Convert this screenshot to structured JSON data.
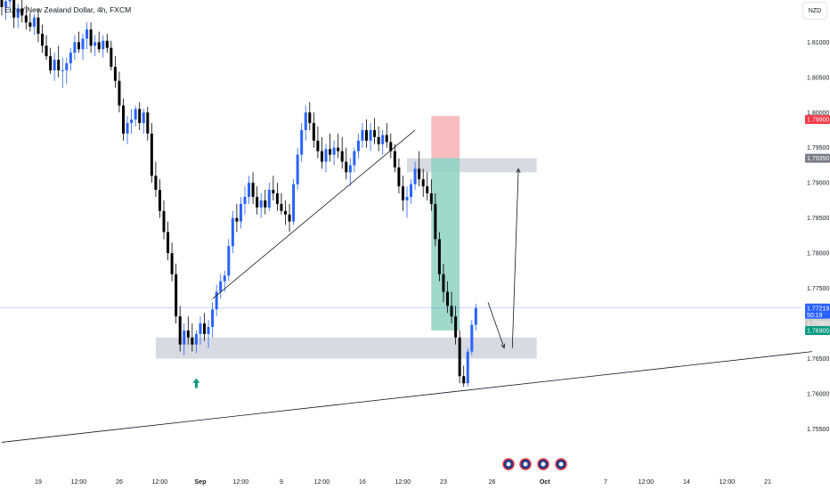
{
  "header": {
    "title": "Euro / New Zealand Dollar, 4h, FXCM",
    "currency": "NZD"
  },
  "chart_data": {
    "type": "candlestick",
    "title": "Euro / New Zealand Dollar, 4h, FXCM",
    "ylim": [
      1.751,
      1.816
    ],
    "y_ticks": [
      "1.81000",
      "1.80500",
      "1.80000",
      "1.79500",
      "1.79000",
      "1.78500",
      "1.78000",
      "1.77500",
      "1.77000",
      "1.76500",
      "1.76000",
      "1.75500"
    ],
    "y_tick_values": [
      1.81,
      1.805,
      1.8,
      1.795,
      1.79,
      1.785,
      1.78,
      1.775,
      1.77,
      1.765,
      1.76,
      1.755
    ],
    "x_ticks": [
      "19",
      "12:00",
      "26",
      "12:00",
      "Sep",
      "12:00",
      "9",
      "12:00",
      "16",
      "12:00",
      "23",
      "26",
      "Oct",
      "7",
      "12:00",
      "14",
      "12:00",
      "21"
    ],
    "x_tick_bold": [
      false,
      false,
      false,
      false,
      true,
      false,
      false,
      false,
      false,
      false,
      false,
      false,
      true,
      false,
      false,
      false,
      false,
      false
    ],
    "x_tick_index": [
      9,
      19,
      29,
      39,
      49,
      59,
      69,
      79,
      89,
      99,
      109,
      121,
      134,
      149,
      159,
      169,
      179,
      189
    ],
    "price_tags": [
      {
        "label": "1.79900",
        "value": 1.799,
        "color": "#f23645"
      },
      {
        "label": "1.79350",
        "value": 1.7935,
        "color": "#787b86"
      },
      {
        "label": "1.77219",
        "value": 1.77219,
        "color": "#2962ff",
        "sub": "50:19"
      },
      {
        "label": "1.77000",
        "value": 1.77,
        "color": "#cccccc"
      },
      {
        "label": "1.76900",
        "value": 1.769,
        "color": "#089981"
      }
    ],
    "current_price": 1.77219,
    "zones": [
      {
        "name": "support-zone",
        "x": [
          38,
          132
        ],
        "y": [
          1.765,
          1.768
        ],
        "color": "#d1d4dc"
      },
      {
        "name": "resistance-zone",
        "x": [
          100,
          132
        ],
        "y": [
          1.7915,
          1.7935
        ],
        "color": "#d1d4dc"
      },
      {
        "name": "stop-loss",
        "x": [
          106,
          113
        ],
        "y": [
          1.7935,
          1.7995
        ],
        "color": "#f7b2b6"
      },
      {
        "name": "take-profit",
        "x": [
          106,
          113
        ],
        "y": [
          1.769,
          1.7935
        ],
        "color": "#8fd1c1"
      }
    ],
    "trendlines": [
      {
        "p1": [
          52,
          1.7735
        ],
        "p2": [
          102,
          1.7975
        ]
      },
      {
        "p1": [
          0,
          1.7531
        ],
        "p2": [
          200,
          1.766
        ]
      }
    ],
    "arrows": [
      {
        "from": [
          120,
          1.773
        ],
        "to": [
          124,
          1.7665
        ]
      },
      {
        "from": [
          126,
          1.7665
        ],
        "to": [
          127.5,
          1.792
        ]
      }
    ],
    "candles": [
      [
        1.816,
        1.818,
        1.8138,
        1.815
      ],
      [
        1.815,
        1.8168,
        1.8132,
        1.8158
      ],
      [
        1.8158,
        1.818,
        1.8145,
        1.8165
      ],
      [
        1.8165,
        1.8175,
        1.812,
        1.8135
      ],
      [
        1.8135,
        1.8155,
        1.812,
        1.8148
      ],
      [
        1.8148,
        1.816,
        1.8128,
        1.8138
      ],
      [
        1.8138,
        1.8152,
        1.8118,
        1.8128
      ],
      [
        1.8128,
        1.8142,
        1.8115,
        1.8122
      ],
      [
        1.8122,
        1.814,
        1.811,
        1.8135
      ],
      [
        1.8135,
        1.8148,
        1.81,
        1.8112
      ],
      [
        1.8112,
        1.8125,
        1.8085,
        1.8095
      ],
      [
        1.8095,
        1.811,
        1.8075,
        1.808
      ],
      [
        1.808,
        1.8092,
        1.8055,
        1.806
      ],
      [
        1.806,
        1.8085,
        1.8045,
        1.8075
      ],
      [
        1.8075,
        1.8095,
        1.805,
        1.806
      ],
      [
        1.806,
        1.8078,
        1.8035,
        1.806
      ],
      [
        1.806,
        1.8078,
        1.804,
        1.807
      ],
      [
        1.807,
        1.8092,
        1.806,
        1.8085
      ],
      [
        1.8085,
        1.811,
        1.8075,
        1.81
      ],
      [
        1.81,
        1.8115,
        1.8085,
        1.809
      ],
      [
        1.809,
        1.8112,
        1.8075,
        1.8105
      ],
      [
        1.8105,
        1.8128,
        1.809,
        1.8118
      ],
      [
        1.8118,
        1.8128,
        1.8085,
        1.8095
      ],
      [
        1.8095,
        1.811,
        1.808,
        1.81
      ],
      [
        1.81,
        1.8115,
        1.8085,
        1.809
      ],
      [
        1.809,
        1.811,
        1.8078,
        1.8102
      ],
      [
        1.8102,
        1.8112,
        1.8085,
        1.8092
      ],
      [
        1.8092,
        1.8102,
        1.806,
        1.8065
      ],
      [
        1.8065,
        1.808,
        1.8035,
        1.8045
      ],
      [
        1.8045,
        1.8058,
        1.8,
        1.801
      ],
      [
        1.801,
        1.802,
        1.796,
        1.797
      ],
      [
        1.797,
        1.7995,
        1.7955,
        1.7985
      ],
      [
        1.7985,
        1.8005,
        1.797,
        1.799
      ],
      [
        1.799,
        1.801,
        1.798,
        1.8005
      ],
      [
        1.8005,
        1.8015,
        1.7975,
        1.7985
      ],
      [
        1.7985,
        1.8005,
        1.797,
        1.8
      ],
      [
        1.8,
        1.8008,
        1.796,
        1.797
      ],
      [
        1.797,
        1.7985,
        1.79,
        1.791
      ],
      [
        1.791,
        1.793,
        1.788,
        1.789
      ],
      [
        1.789,
        1.7905,
        1.785,
        1.786
      ],
      [
        1.786,
        1.7875,
        1.782,
        1.783
      ],
      [
        1.783,
        1.7845,
        1.779,
        1.78
      ],
      [
        1.78,
        1.7815,
        1.776,
        1.777
      ],
      [
        1.777,
        1.7785,
        1.77,
        1.771
      ],
      [
        1.771,
        1.7725,
        1.766,
        1.767
      ],
      [
        1.767,
        1.77,
        1.7655,
        1.769
      ],
      [
        1.769,
        1.771,
        1.767,
        1.768
      ],
      [
        1.768,
        1.77,
        1.766,
        1.767
      ],
      [
        1.767,
        1.769,
        1.7658,
        1.7685
      ],
      [
        1.7685,
        1.771,
        1.767,
        1.77
      ],
      [
        1.77,
        1.7715,
        1.7675,
        1.7685
      ],
      [
        1.7685,
        1.7705,
        1.7665,
        1.7695
      ],
      [
        1.7695,
        1.773,
        1.768,
        1.772
      ],
      [
        1.772,
        1.7755,
        1.771,
        1.7745
      ],
      [
        1.7745,
        1.777,
        1.7735,
        1.776
      ],
      [
        1.776,
        1.7775,
        1.7745,
        1.7768
      ],
      [
        1.7768,
        1.782,
        1.776,
        1.781
      ],
      [
        1.781,
        1.786,
        1.78,
        1.785
      ],
      [
        1.785,
        1.787,
        1.783,
        1.7845
      ],
      [
        1.7845,
        1.788,
        1.7835,
        1.787
      ],
      [
        1.787,
        1.7895,
        1.7855,
        1.788
      ],
      [
        1.788,
        1.791,
        1.787,
        1.79
      ],
      [
        1.79,
        1.7915,
        1.787,
        1.788
      ],
      [
        1.788,
        1.7895,
        1.7855,
        1.7865
      ],
      [
        1.7865,
        1.7885,
        1.785,
        1.7875
      ],
      [
        1.7875,
        1.789,
        1.7855,
        1.7865
      ],
      [
        1.7865,
        1.79,
        1.786,
        1.789
      ],
      [
        1.789,
        1.791,
        1.7875,
        1.7885
      ],
      [
        1.7885,
        1.79,
        1.786,
        1.787
      ],
      [
        1.787,
        1.7885,
        1.7855,
        1.786
      ],
      [
        1.786,
        1.7875,
        1.784,
        1.7855
      ],
      [
        1.7855,
        1.787,
        1.783,
        1.7845
      ],
      [
        1.7845,
        1.7905,
        1.784,
        1.7898
      ],
      [
        1.7898,
        1.795,
        1.789,
        1.794
      ],
      [
        1.794,
        1.7985,
        1.793,
        1.7975
      ],
      [
        1.7975,
        1.801,
        1.796,
        1.8
      ],
      [
        1.8,
        1.8015,
        1.7975,
        1.7985
      ],
      [
        1.7985,
        1.8,
        1.795,
        1.796
      ],
      [
        1.796,
        1.798,
        1.7935,
        1.7945
      ],
      [
        1.7945,
        1.7965,
        1.792,
        1.793
      ],
      [
        1.793,
        1.7955,
        1.7915,
        1.7948
      ],
      [
        1.7948,
        1.797,
        1.793,
        1.794
      ],
      [
        1.794,
        1.796,
        1.7925,
        1.795
      ],
      [
        1.795,
        1.797,
        1.7935,
        1.7945
      ],
      [
        1.7945,
        1.7965,
        1.792,
        1.793
      ],
      [
        1.793,
        1.795,
        1.7905,
        1.7915
      ],
      [
        1.7915,
        1.7935,
        1.7895,
        1.7925
      ],
      [
        1.7925,
        1.795,
        1.7915,
        1.7945
      ],
      [
        1.7945,
        1.797,
        1.7935,
        1.796
      ],
      [
        1.796,
        1.7985,
        1.795,
        1.7975
      ],
      [
        1.7975,
        1.799,
        1.795,
        1.796
      ],
      [
        1.796,
        1.7985,
        1.7945,
        1.7975
      ],
      [
        1.7975,
        1.7992,
        1.7955,
        1.7965
      ],
      [
        1.7965,
        1.798,
        1.7945,
        1.7955
      ],
      [
        1.7955,
        1.7975,
        1.794,
        1.7968
      ],
      [
        1.7968,
        1.7985,
        1.795,
        1.7958
      ],
      [
        1.7958,
        1.797,
        1.7935,
        1.7945
      ],
      [
        1.7945,
        1.7955,
        1.7915,
        1.7922
      ],
      [
        1.7922,
        1.7935,
        1.7885,
        1.7895
      ],
      [
        1.7895,
        1.791,
        1.786,
        1.7875
      ],
      [
        1.7875,
        1.7895,
        1.785,
        1.788
      ],
      [
        1.788,
        1.7905,
        1.787,
        1.7898
      ],
      [
        1.7898,
        1.793,
        1.789,
        1.792
      ],
      [
        1.792,
        1.7945,
        1.7895,
        1.7905
      ],
      [
        1.7905,
        1.792,
        1.788,
        1.7895
      ],
      [
        1.7895,
        1.7915,
        1.7875,
        1.7885
      ],
      [
        1.7885,
        1.7905,
        1.786,
        1.787
      ],
      [
        1.787,
        1.7885,
        1.781,
        1.782
      ],
      [
        1.782,
        1.783,
        1.776,
        1.777
      ],
      [
        1.777,
        1.7785,
        1.773,
        1.7745
      ],
      [
        1.7745,
        1.776,
        1.7715,
        1.7725
      ],
      [
        1.7725,
        1.7745,
        1.77,
        1.771
      ],
      [
        1.771,
        1.7725,
        1.767,
        1.768
      ],
      [
        1.768,
        1.769,
        1.7615,
        1.7625
      ],
      [
        1.7625,
        1.764,
        1.761,
        1.7615
      ],
      [
        1.7615,
        1.7665,
        1.761,
        1.766
      ],
      [
        1.766,
        1.7705,
        1.7655,
        1.7698
      ],
      [
        1.7698,
        1.7728,
        1.769,
        1.7722
      ]
    ]
  },
  "footer": {
    "event_icons": [
      "flag-event-icon",
      "flag-event-icon",
      "flag-event-icon",
      "flag-event-icon"
    ]
  }
}
